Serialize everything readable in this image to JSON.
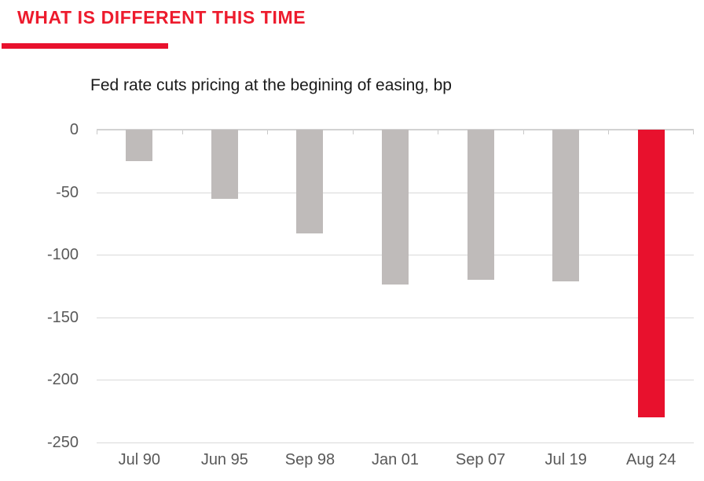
{
  "page": {
    "header": "WHAT IS DIFFERENT THIS TIME",
    "colors": {
      "header_red": "#ED1B2D",
      "accent_red": "#E8112D",
      "bar_gray": "#BFBBBA",
      "gridline": "#D9D9D9",
      "axis_line": "#D2D2D2",
      "tick_label": "#595959",
      "title_text": "#1A1A1A"
    }
  },
  "chart_data": {
    "type": "bar",
    "title": "Fed rate cuts pricing at the begining of easing, bp",
    "categories": [
      "Jul 90",
      "Jun 95",
      "Sep 98",
      "Jan 01",
      "Sep 07",
      "Jul 19",
      "Aug 24"
    ],
    "values": [
      -25,
      -55,
      -83,
      -124,
      -120,
      -121,
      -230
    ],
    "unit": "bp",
    "xlabel": "",
    "ylabel": "",
    "ylim": [
      -250,
      0
    ],
    "yticks": [
      0,
      -50,
      -100,
      -150,
      -200,
      -250
    ],
    "grid": true,
    "legend": false,
    "highlight_category": "Aug 24",
    "bar_color_default": "#BFBBBA",
    "bar_color_highlight": "#E8112D"
  }
}
